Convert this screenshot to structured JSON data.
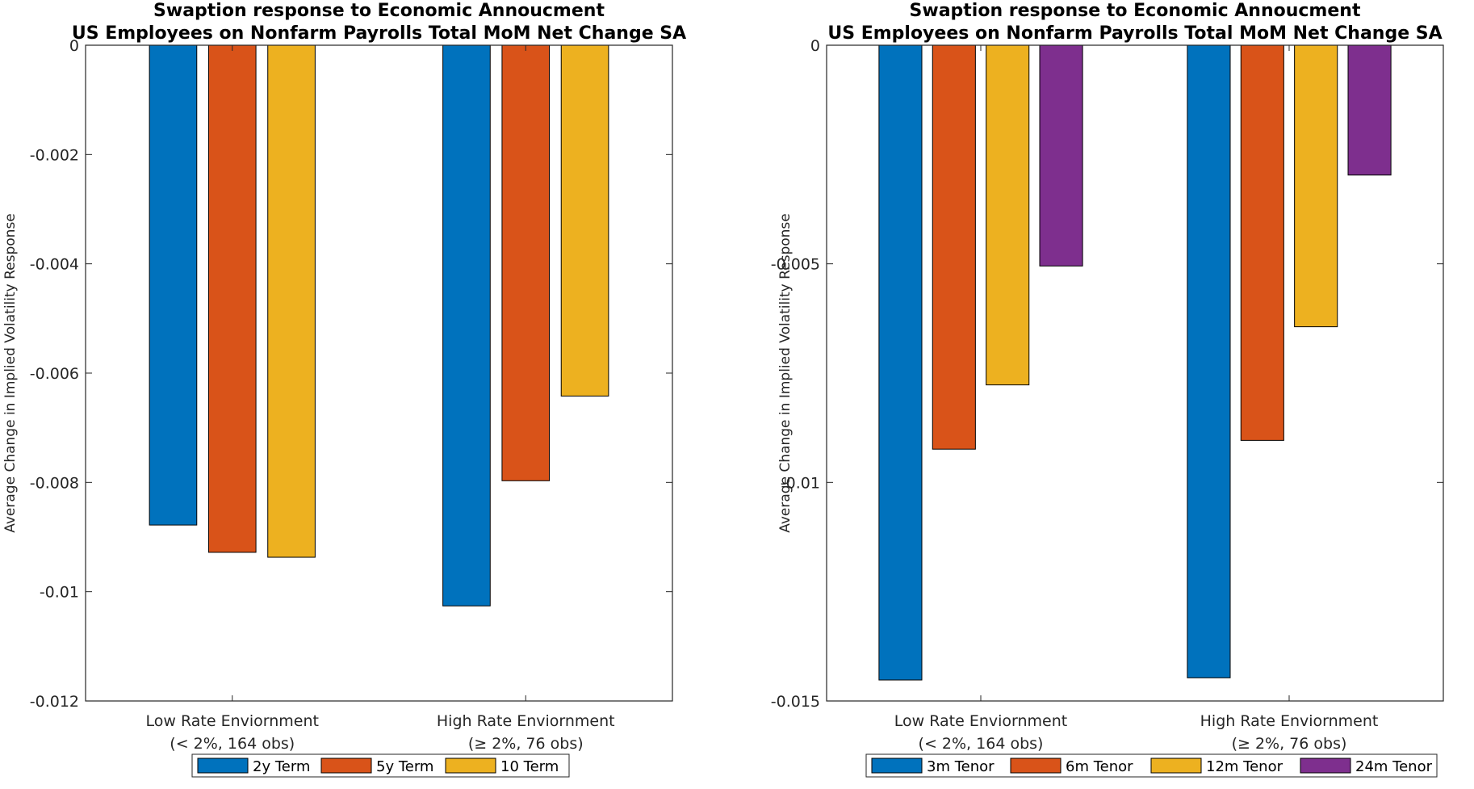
{
  "colors": {
    "blue": "#0072BD",
    "orange": "#D95319",
    "yellow": "#EDB120",
    "purple": "#7E2F8E",
    "axis": "#262626"
  },
  "chart_data": [
    {
      "type": "bar",
      "title": "Swaption response to Economic Annoucment\nUS Employees on Nonfarm Payrolls Total MoM Net Change SA",
      "title_lines": [
        "Swaption response to Economic Annoucment",
        "US Employees on Nonfarm Payrolls Total MoM Net Change SA"
      ],
      "xlabel": "",
      "ylabel": "Average Change in Implied Volatility Response",
      "categories": [
        [
          "Low Rate Enviornment",
          "(< 2%, 164 obs)"
        ],
        [
          "High Rate Enviornment",
          "(≥ 2%, 76 obs)"
        ]
      ],
      "ylim": [
        -0.012,
        0
      ],
      "yticks": [
        0,
        -0.002,
        -0.004,
        -0.006,
        -0.008,
        -0.01,
        -0.012
      ],
      "ytick_labels": [
        "0",
        "-0.002",
        "-0.004",
        "-0.006",
        "-0.008",
        "-0.01",
        "-0.012"
      ],
      "legend_position": "bottom-center",
      "series": [
        {
          "name": "2y Term",
          "color": "#0072BD",
          "values": [
            -0.00878,
            -0.01026
          ]
        },
        {
          "name": "5y Term",
          "color": "#D95319",
          "values": [
            -0.00928,
            -0.00797
          ]
        },
        {
          "name": "10 Term",
          "color": "#EDB120",
          "values": [
            -0.00937,
            -0.00642
          ]
        }
      ]
    },
    {
      "type": "bar",
      "title": "Swaption response to Economic Annoucment\nUS Employees on Nonfarm Payrolls Total MoM Net Change SA",
      "title_lines": [
        "Swaption response to Economic Annoucment",
        "US Employees on Nonfarm Payrolls Total MoM Net Change SA"
      ],
      "xlabel": "",
      "ylabel": "Average Change in Implied Volatility Response",
      "categories": [
        [
          "Low Rate Enviornment",
          "(< 2%, 164 obs)"
        ],
        [
          "High Rate Enviornment",
          "(≥ 2%, 76 obs)"
        ]
      ],
      "ylim": [
        -0.015,
        0
      ],
      "yticks": [
        0,
        -0.005,
        -0.01,
        -0.015
      ],
      "ytick_labels": [
        "0",
        "-0.005",
        "-0.01",
        "-0.015"
      ],
      "legend_position": "bottom-center",
      "series": [
        {
          "name": "3m Tenor",
          "color": "#0072BD",
          "values": [
            -0.01452,
            -0.01447
          ]
        },
        {
          "name": "6m Tenor",
          "color": "#D95319",
          "values": [
            -0.00924,
            -0.00904
          ]
        },
        {
          "name": "12m Tenor",
          "color": "#EDB120",
          "values": [
            -0.00777,
            -0.00644
          ]
        },
        {
          "name": "24m Tenor",
          "color": "#7E2F8E",
          "values": [
            -0.00505,
            -0.00297
          ]
        }
      ]
    }
  ]
}
